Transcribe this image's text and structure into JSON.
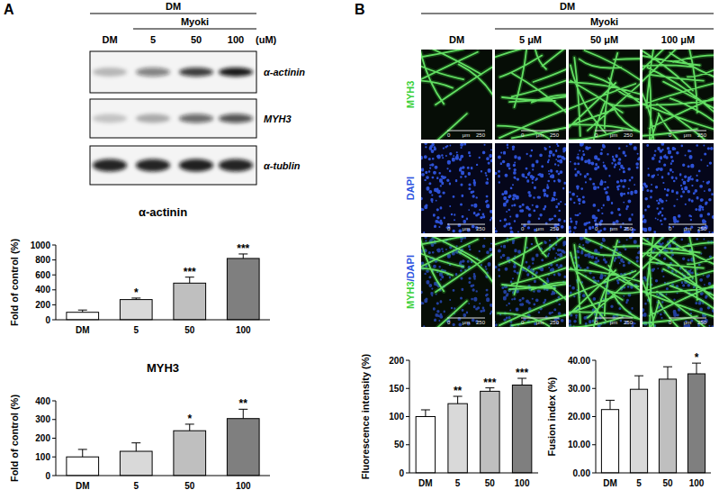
{
  "panel_labels": [
    "A",
    "B"
  ],
  "blot": {
    "header": "DM",
    "group": "Myoki",
    "lanes": [
      "DM",
      "5",
      "50",
      "100"
    ],
    "unit": "(uM)",
    "rows": [
      "α-actinin",
      "MYH3",
      "α-tublin"
    ]
  },
  "images": {
    "header": "DM",
    "group": "Myoki",
    "columns": [
      "DM",
      "5 μM",
      "50 μM",
      "100 μM"
    ],
    "rows": [
      "MYH3",
      "DAPI",
      "MYH3/DAPI"
    ],
    "scale_bar": [
      "0",
      "μm",
      "250"
    ]
  },
  "chart_data": [
    {
      "type": "bar",
      "title": "α-actinin",
      "y_label": "Fold of control (%)",
      "categories": [
        "DM",
        "5",
        "50",
        "100"
      ],
      "values": [
        100,
        270,
        490,
        820
      ],
      "errors": [
        30,
        20,
        80,
        60
      ],
      "annotations": [
        null,
        "*",
        "***",
        "***"
      ],
      "colors": [
        "#ffffff",
        "#d9d9d9",
        "#bfbfbf",
        "#7f7f7f"
      ],
      "ylim": [
        0,
        1000
      ],
      "yticks": [
        0,
        200,
        400,
        600,
        800,
        1000
      ],
      "grid": false
    },
    {
      "type": "bar",
      "title": "MYH3",
      "y_label": "Fold of control (%)",
      "categories": [
        "DM",
        "5",
        "50",
        "100"
      ],
      "values": [
        100,
        130,
        240,
        305
      ],
      "errors": [
        40,
        45,
        35,
        50
      ],
      "annotations": [
        null,
        null,
        "*",
        "**"
      ],
      "colors": [
        "#ffffff",
        "#d9d9d9",
        "#bfbfbf",
        "#7f7f7f"
      ],
      "ylim": [
        0,
        400
      ],
      "yticks": [
        0,
        100,
        200,
        300,
        400
      ],
      "grid": false
    },
    {
      "type": "bar",
      "y_label": "Fluorescence intensity (%)",
      "categories": [
        "DM",
        "5",
        "50",
        "100"
      ],
      "values": [
        100,
        123,
        145,
        156
      ],
      "errors": [
        12,
        13,
        6,
        12
      ],
      "annotations": [
        null,
        "**",
        "***",
        "***"
      ],
      "colors": [
        "#ffffff",
        "#d9d9d9",
        "#bfbfbf",
        "#7f7f7f"
      ],
      "ylim": [
        0,
        200
      ],
      "yticks": [
        0,
        50,
        100,
        150,
        200
      ],
      "grid": false
    },
    {
      "type": "bar",
      "y_label": "Fusion index (%)",
      "categories": [
        "DM",
        "5",
        "50",
        "100"
      ],
      "values": [
        22.5,
        29.7,
        33.3,
        35.2
      ],
      "errors": [
        3.3,
        4.8,
        4.4,
        3.8
      ],
      "annotations": [
        null,
        null,
        null,
        "*"
      ],
      "colors": [
        "#ffffff",
        "#d9d9d9",
        "#bfbfbf",
        "#7f7f7f"
      ],
      "ylim": [
        0,
        40
      ],
      "yticks": [
        {
          "value": 0,
          "label": "0.00"
        },
        {
          "value": 10,
          "label": "10.00"
        },
        {
          "value": 20,
          "label": "20.00"
        },
        {
          "value": 30,
          "label": "30.00"
        },
        {
          "value": 40,
          "label": "40.00"
        }
      ],
      "grid": false
    }
  ]
}
